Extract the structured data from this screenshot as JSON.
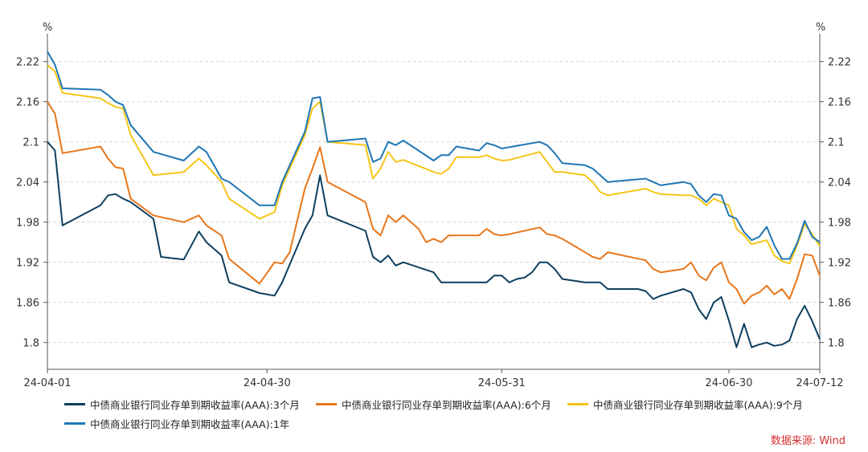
{
  "chart_data": {
    "type": "line",
    "y_unit_left": "%",
    "y_unit_right": "%",
    "ylim": [
      1.76,
      2.24
    ],
    "y_ticks": [
      "1.8",
      "1.86",
      "1.92",
      "1.98",
      "2.04",
      "2.1",
      "2.16",
      "2.22"
    ],
    "x_ticks": [
      "24-04-01",
      "24-04-30",
      "24-05-31",
      "24-06-30",
      "24-07-12"
    ],
    "x_range": [
      "2024-04-01",
      "2024-07-12"
    ],
    "grid": "horizontal-dashed",
    "legend_position": "bottom",
    "series": [
      {
        "name": "中债商业银行同业存单到期收益率(AAA):3个月",
        "color": "#0d3f5e",
        "points": [
          [
            "2024-04-01",
            2.1
          ],
          [
            "2024-04-02",
            2.087
          ],
          [
            "2024-04-03",
            1.975
          ],
          [
            "2024-04-08",
            2.005
          ],
          [
            "2024-04-09",
            2.02
          ],
          [
            "2024-04-10",
            2.022
          ],
          [
            "2024-04-11",
            2.015
          ],
          [
            "2024-04-12",
            2.01
          ],
          [
            "2024-04-15",
            1.985
          ],
          [
            "2024-04-16",
            1.928
          ],
          [
            "2024-04-19",
            1.924
          ],
          [
            "2024-04-21",
            1.966
          ],
          [
            "2024-04-22",
            1.95
          ],
          [
            "2024-04-24",
            1.93
          ],
          [
            "2024-04-25",
            1.89
          ],
          [
            "2024-04-29",
            1.874
          ],
          [
            "2024-05-01",
            1.87
          ],
          [
            "2024-05-02",
            1.89
          ],
          [
            "2024-05-05",
            1.97
          ],
          [
            "2024-05-06",
            1.99
          ],
          [
            "2024-05-07",
            2.05
          ],
          [
            "2024-05-08",
            1.99
          ],
          [
            "2024-05-13",
            1.967
          ],
          [
            "2024-05-14",
            1.928
          ],
          [
            "2024-05-15",
            1.92
          ],
          [
            "2024-05-16",
            1.93
          ],
          [
            "2024-05-17",
            1.915
          ],
          [
            "2024-05-18",
            1.92
          ],
          [
            "2024-05-22",
            1.905
          ],
          [
            "2024-05-23",
            1.89
          ],
          [
            "2024-05-28",
            1.89
          ],
          [
            "2024-05-29",
            1.89
          ],
          [
            "2024-05-30",
            1.9
          ],
          [
            "2024-05-31",
            1.9
          ],
          [
            "2024-06-01",
            1.89
          ],
          [
            "2024-06-02",
            1.895
          ],
          [
            "2024-06-03",
            1.897
          ],
          [
            "2024-06-04",
            1.905
          ],
          [
            "2024-06-05",
            1.92
          ],
          [
            "2024-06-06",
            1.92
          ],
          [
            "2024-06-07",
            1.91
          ],
          [
            "2024-06-08",
            1.895
          ],
          [
            "2024-06-11",
            1.89
          ],
          [
            "2024-06-12",
            1.89
          ],
          [
            "2024-06-13",
            1.89
          ],
          [
            "2024-06-14",
            1.88
          ],
          [
            "2024-06-17",
            1.88
          ],
          [
            "2024-06-18",
            1.88
          ],
          [
            "2024-06-19",
            1.877
          ],
          [
            "2024-06-20",
            1.865
          ],
          [
            "2024-06-21",
            1.87
          ],
          [
            "2024-06-24",
            1.88
          ],
          [
            "2024-06-25",
            1.875
          ],
          [
            "2024-06-26",
            1.85
          ],
          [
            "2024-06-27",
            1.835
          ],
          [
            "2024-06-28",
            1.86
          ],
          [
            "2024-06-29",
            1.868
          ],
          [
            "2024-06-30",
            1.833
          ],
          [
            "2024-07-01",
            1.793
          ],
          [
            "2024-07-02",
            1.828
          ],
          [
            "2024-07-03",
            1.793
          ],
          [
            "2024-07-04",
            1.797
          ],
          [
            "2024-07-05",
            1.8
          ],
          [
            "2024-07-06",
            1.795
          ],
          [
            "2024-07-07",
            1.797
          ],
          [
            "2024-07-08",
            1.803
          ],
          [
            "2024-07-09",
            1.835
          ],
          [
            "2024-07-10",
            1.855
          ],
          [
            "2024-07-11",
            1.832
          ],
          [
            "2024-07-12",
            1.805
          ]
        ]
      },
      {
        "name": "中债商业银行同业存单到期收益率(AAA):6个月",
        "color": "#e8761a",
        "points": [
          [
            "2024-04-01",
            2.16
          ],
          [
            "2024-04-02",
            2.142
          ],
          [
            "2024-04-03",
            2.083
          ],
          [
            "2024-04-08",
            2.093
          ],
          [
            "2024-04-09",
            2.075
          ],
          [
            "2024-04-10",
            2.062
          ],
          [
            "2024-04-11",
            2.06
          ],
          [
            "2024-04-12",
            2.015
          ],
          [
            "2024-04-15",
            1.99
          ],
          [
            "2024-04-19",
            1.98
          ],
          [
            "2024-04-21",
            1.99
          ],
          [
            "2024-04-22",
            1.975
          ],
          [
            "2024-04-24",
            1.96
          ],
          [
            "2024-04-25",
            1.925
          ],
          [
            "2024-04-29",
            1.888
          ],
          [
            "2024-05-01",
            1.92
          ],
          [
            "2024-05-02",
            1.918
          ],
          [
            "2024-05-03",
            1.935
          ],
          [
            "2024-05-05",
            2.03
          ],
          [
            "2024-05-06",
            2.06
          ],
          [
            "2024-05-07",
            2.092
          ],
          [
            "2024-05-08",
            2.04
          ],
          [
            "2024-05-13",
            2.01
          ],
          [
            "2024-05-14",
            1.97
          ],
          [
            "2024-05-15",
            1.96
          ],
          [
            "2024-05-16",
            1.99
          ],
          [
            "2024-05-17",
            1.98
          ],
          [
            "2024-05-18",
            1.99
          ],
          [
            "2024-05-20",
            1.97
          ],
          [
            "2024-05-21",
            1.95
          ],
          [
            "2024-05-22",
            1.955
          ],
          [
            "2024-05-23",
            1.95
          ],
          [
            "2024-05-24",
            1.96
          ],
          [
            "2024-05-28",
            1.96
          ],
          [
            "2024-05-29",
            1.97
          ],
          [
            "2024-05-30",
            1.962
          ],
          [
            "2024-05-31",
            1.96
          ],
          [
            "2024-06-01",
            1.962
          ],
          [
            "2024-06-05",
            1.972
          ],
          [
            "2024-06-06",
            1.962
          ],
          [
            "2024-06-07",
            1.96
          ],
          [
            "2024-06-08",
            1.955
          ],
          [
            "2024-06-11",
            1.935
          ],
          [
            "2024-06-12",
            1.928
          ],
          [
            "2024-06-13",
            1.925
          ],
          [
            "2024-06-14",
            1.935
          ],
          [
            "2024-06-19",
            1.923
          ],
          [
            "2024-06-20",
            1.91
          ],
          [
            "2024-06-21",
            1.905
          ],
          [
            "2024-06-24",
            1.91
          ],
          [
            "2024-06-25",
            1.92
          ],
          [
            "2024-06-26",
            1.9
          ],
          [
            "2024-06-27",
            1.893
          ],
          [
            "2024-06-28",
            1.912
          ],
          [
            "2024-06-29",
            1.92
          ],
          [
            "2024-06-30",
            1.89
          ],
          [
            "2024-07-01",
            1.88
          ],
          [
            "2024-07-02",
            1.858
          ],
          [
            "2024-07-03",
            1.87
          ],
          [
            "2024-07-04",
            1.875
          ],
          [
            "2024-07-05",
            1.885
          ],
          [
            "2024-07-06",
            1.872
          ],
          [
            "2024-07-07",
            1.88
          ],
          [
            "2024-07-08",
            1.865
          ],
          [
            "2024-07-09",
            1.895
          ],
          [
            "2024-07-10",
            1.932
          ],
          [
            "2024-07-11",
            1.93
          ],
          [
            "2024-07-12",
            1.9
          ]
        ]
      },
      {
        "name": "中债商业银行同业存单到期收益率(AAA):9个月",
        "color": "#f5c518",
        "points": [
          [
            "2024-04-01",
            2.215
          ],
          [
            "2024-04-02",
            2.205
          ],
          [
            "2024-04-03",
            2.173
          ],
          [
            "2024-04-08",
            2.165
          ],
          [
            "2024-04-09",
            2.158
          ],
          [
            "2024-04-10",
            2.152
          ],
          [
            "2024-04-11",
            2.15
          ],
          [
            "2024-04-12",
            2.11
          ],
          [
            "2024-04-15",
            2.05
          ],
          [
            "2024-04-19",
            2.055
          ],
          [
            "2024-04-21",
            2.075
          ],
          [
            "2024-04-22",
            2.065
          ],
          [
            "2024-04-24",
            2.04
          ],
          [
            "2024-04-25",
            2.015
          ],
          [
            "2024-04-29",
            1.985
          ],
          [
            "2024-05-01",
            1.995
          ],
          [
            "2024-05-02",
            2.035
          ],
          [
            "2024-05-03",
            2.06
          ],
          [
            "2024-05-05",
            2.11
          ],
          [
            "2024-05-06",
            2.15
          ],
          [
            "2024-05-07",
            2.16
          ],
          [
            "2024-05-08",
            2.1
          ],
          [
            "2024-05-13",
            2.095
          ],
          [
            "2024-05-14",
            2.045
          ],
          [
            "2024-05-15",
            2.06
          ],
          [
            "2024-05-16",
            2.085
          ],
          [
            "2024-05-17",
            2.07
          ],
          [
            "2024-05-18",
            2.073
          ],
          [
            "2024-05-22",
            2.055
          ],
          [
            "2024-05-23",
            2.052
          ],
          [
            "2024-05-24",
            2.06
          ],
          [
            "2024-05-25",
            2.077
          ],
          [
            "2024-05-28",
            2.077
          ],
          [
            "2024-05-29",
            2.08
          ],
          [
            "2024-05-30",
            2.075
          ],
          [
            "2024-05-31",
            2.072
          ],
          [
            "2024-06-01",
            2.073
          ],
          [
            "2024-06-05",
            2.085
          ],
          [
            "2024-06-06",
            2.07
          ],
          [
            "2024-06-07",
            2.055
          ],
          [
            "2024-06-08",
            2.055
          ],
          [
            "2024-06-11",
            2.05
          ],
          [
            "2024-06-12",
            2.04
          ],
          [
            "2024-06-13",
            2.025
          ],
          [
            "2024-06-14",
            2.02
          ],
          [
            "2024-06-19",
            2.03
          ],
          [
            "2024-06-20",
            2.025
          ],
          [
            "2024-06-21",
            2.022
          ],
          [
            "2024-06-24",
            2.02
          ],
          [
            "2024-06-25",
            2.02
          ],
          [
            "2024-06-26",
            2.015
          ],
          [
            "2024-06-27",
            2.005
          ],
          [
            "2024-06-28",
            2.015
          ],
          [
            "2024-06-29",
            2.01
          ],
          [
            "2024-06-30",
            2.005
          ],
          [
            "2024-07-01",
            1.97
          ],
          [
            "2024-07-02",
            1.96
          ],
          [
            "2024-07-03",
            1.947
          ],
          [
            "2024-07-04",
            1.95
          ],
          [
            "2024-07-05",
            1.953
          ],
          [
            "2024-07-06",
            1.93
          ],
          [
            "2024-07-07",
            1.922
          ],
          [
            "2024-07-08",
            1.918
          ],
          [
            "2024-07-09",
            1.945
          ],
          [
            "2024-07-10",
            1.977
          ],
          [
            "2024-07-11",
            1.962
          ],
          [
            "2024-07-12",
            1.944
          ]
        ]
      },
      {
        "name": "中债商业银行同业存单到期收益率(AAA):1年",
        "color": "#1f77b4",
        "points": [
          [
            "2024-04-01",
            2.235
          ],
          [
            "2024-04-02",
            2.215
          ],
          [
            "2024-04-03",
            2.18
          ],
          [
            "2024-04-08",
            2.178
          ],
          [
            "2024-04-09",
            2.17
          ],
          [
            "2024-04-10",
            2.16
          ],
          [
            "2024-04-11",
            2.155
          ],
          [
            "2024-04-12",
            2.125
          ],
          [
            "2024-04-15",
            2.085
          ],
          [
            "2024-04-19",
            2.072
          ],
          [
            "2024-04-21",
            2.093
          ],
          [
            "2024-04-22",
            2.085
          ],
          [
            "2024-04-24",
            2.045
          ],
          [
            "2024-04-25",
            2.04
          ],
          [
            "2024-04-29",
            2.005
          ],
          [
            "2024-05-01",
            2.005
          ],
          [
            "2024-05-02",
            2.04
          ],
          [
            "2024-05-03",
            2.065
          ],
          [
            "2024-05-05",
            2.115
          ],
          [
            "2024-05-06",
            2.165
          ],
          [
            "2024-05-07",
            2.167
          ],
          [
            "2024-05-08",
            2.1
          ],
          [
            "2024-05-13",
            2.105
          ],
          [
            "2024-05-14",
            2.07
          ],
          [
            "2024-05-15",
            2.075
          ],
          [
            "2024-05-16",
            2.1
          ],
          [
            "2024-05-17",
            2.095
          ],
          [
            "2024-05-18",
            2.102
          ],
          [
            "2024-05-22",
            2.072
          ],
          [
            "2024-05-23",
            2.08
          ],
          [
            "2024-05-24",
            2.08
          ],
          [
            "2024-05-25",
            2.093
          ],
          [
            "2024-05-28",
            2.087
          ],
          [
            "2024-05-29",
            2.098
          ],
          [
            "2024-05-30",
            2.095
          ],
          [
            "2024-05-31",
            2.09
          ],
          [
            "2024-06-01",
            2.092
          ],
          [
            "2024-06-05",
            2.1
          ],
          [
            "2024-06-06",
            2.095
          ],
          [
            "2024-06-07",
            2.083
          ],
          [
            "2024-06-08",
            2.068
          ],
          [
            "2024-06-11",
            2.065
          ],
          [
            "2024-06-12",
            2.06
          ],
          [
            "2024-06-13",
            2.05
          ],
          [
            "2024-06-14",
            2.04
          ],
          [
            "2024-06-19",
            2.045
          ],
          [
            "2024-06-20",
            2.04
          ],
          [
            "2024-06-21",
            2.035
          ],
          [
            "2024-06-24",
            2.04
          ],
          [
            "2024-06-25",
            2.037
          ],
          [
            "2024-06-26",
            2.02
          ],
          [
            "2024-06-27",
            2.01
          ],
          [
            "2024-06-28",
            2.022
          ],
          [
            "2024-06-29",
            2.02
          ],
          [
            "2024-06-30",
            1.99
          ],
          [
            "2024-07-01",
            1.985
          ],
          [
            "2024-07-02",
            1.965
          ],
          [
            "2024-07-03",
            1.953
          ],
          [
            "2024-07-04",
            1.958
          ],
          [
            "2024-07-05",
            1.973
          ],
          [
            "2024-07-06",
            1.945
          ],
          [
            "2024-07-07",
            1.925
          ],
          [
            "2024-07-08",
            1.925
          ],
          [
            "2024-07-09",
            1.948
          ],
          [
            "2024-07-10",
            1.982
          ],
          [
            "2024-07-11",
            1.958
          ],
          [
            "2024-07-12",
            1.95
          ]
        ]
      }
    ]
  },
  "source_text": "数据来源: Wind"
}
